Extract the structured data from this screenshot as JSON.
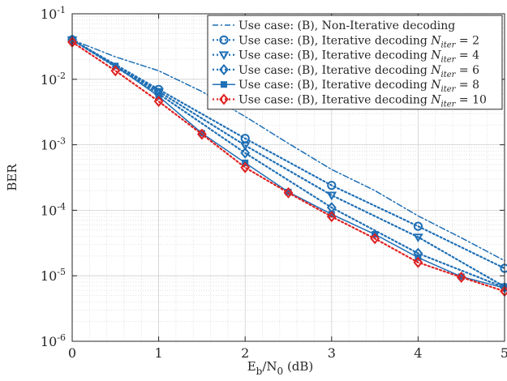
{
  "chart_data": {
    "type": "line",
    "xlabel": "E_b/N_0 (dB)",
    "ylabel": "BER",
    "xlim": [
      0,
      5
    ],
    "ylim_exp": [
      -6,
      -1
    ],
    "y_scale": "log",
    "grid": "major-and-minor",
    "legend_position": "top-right",
    "x_ticks": [
      0,
      1,
      2,
      3,
      4,
      5
    ],
    "y_ticks_exp": [
      -6,
      -5,
      -4,
      -3,
      -2,
      -1
    ],
    "y_tick_base": "10",
    "series": [
      {
        "name": "Use case: (B), Non-Iterative decoding",
        "color": "#1f6fb5",
        "dash": "dashdot",
        "marker": "none",
        "x": [
          0,
          0.5,
          1,
          1.5,
          2,
          2.5,
          3,
          3.5,
          4,
          4.5,
          5
        ],
        "y": [
          0.04,
          0.022,
          0.0135,
          0.0065,
          0.0027,
          0.00105,
          0.00042,
          0.0002,
          8.2e-05,
          3.8e-05,
          1.7e-05
        ]
      },
      {
        "name_prefix": "Use case: (B), Iterative decoding ",
        "name_var": "N",
        "name_sub": "iter",
        "name_value": "= 2",
        "color": "#1f6fb5",
        "dash": "dotted",
        "marker": "circle",
        "x": [
          0,
          1,
          2,
          3,
          4,
          5
        ],
        "y": [
          0.04,
          0.007,
          0.00125,
          0.00024,
          5.7e-05,
          1.3e-05
        ]
      },
      {
        "name_prefix": "Use case: (B), Iterative decoding ",
        "name_var": "N",
        "name_sub": "iter",
        "name_value": "= 4",
        "color": "#1f6fb5",
        "dash": "dotted",
        "marker": "triangle-down",
        "x": [
          0,
          1,
          2,
          3,
          4,
          5
        ],
        "y": [
          0.04,
          0.0065,
          0.00098,
          0.00017,
          3.9e-05,
          6.8e-06
        ]
      },
      {
        "name_prefix": "Use case: (B), Iterative decoding ",
        "name_var": "N",
        "name_sub": "iter",
        "name_value": "= 6",
        "color": "#1f6fb5",
        "dash": "dotted",
        "marker": "diamond",
        "x": [
          0,
          1,
          2,
          3,
          4,
          5
        ],
        "y": [
          0.04,
          0.006,
          0.00075,
          0.00011,
          2.2e-05,
          6.6e-06
        ]
      },
      {
        "name_prefix": "Use case: (B), Iterative decoding ",
        "name_var": "N",
        "name_sub": "iter",
        "name_value": "= 8",
        "color": "#1f6fb5",
        "dash": "solid",
        "marker": "square",
        "x": [
          0,
          0.5,
          1,
          1.5,
          2,
          2.5,
          3,
          3.5,
          4,
          4.5,
          5
        ],
        "y": [
          0.04,
          0.016,
          0.0055,
          0.0015,
          0.00053,
          0.00019,
          8.7e-05,
          4.3e-05,
          1.9e-05,
          9.7e-06,
          6.5e-06
        ]
      },
      {
        "name_prefix": "Use case: (B), Iterative decoding ",
        "name_var": "N",
        "name_sub": "iter",
        "name_value": "= 10",
        "color": "#e02020",
        "dash": "dotted",
        "marker": "diamond",
        "x": [
          0,
          0.5,
          1,
          1.5,
          2,
          2.5,
          3,
          3.5,
          4,
          4.5,
          5
        ],
        "y": [
          0.037,
          0.0135,
          0.0046,
          0.00145,
          0.00045,
          0.000185,
          8e-05,
          3.7e-05,
          1.6e-05,
          9.5e-06,
          5.8e-06
        ]
      }
    ]
  }
}
